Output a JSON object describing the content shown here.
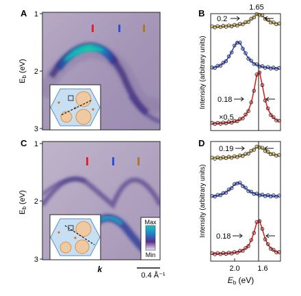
{
  "figure": {
    "panels": {
      "A": {
        "label": "A",
        "ylabel": "E_b (eV)",
        "yticks": [
          "1",
          "2",
          "3"
        ]
      },
      "B": {
        "label": "B",
        "ylabel": "Intensity (arbitrary units)",
        "top_value": "1.65",
        "ann_top": "0.2",
        "ann_bottom": "0.18",
        "scale": "×0.5"
      },
      "C": {
        "label": "C",
        "ylabel": "E_b (eV)",
        "yticks": [
          "1",
          "2",
          "3"
        ],
        "xlabel": "k",
        "scalebar": "0.4 Å⁻¹",
        "colorbar_max": "Max",
        "colorbar_min": "Min"
      },
      "D": {
        "label": "D",
        "ylabel": "Intensity (arbitrary units)",
        "ann_top": "0.19",
        "ann_bottom": "0.18",
        "xticks": [
          "2.0",
          "1.6"
        ],
        "xlabel": "E_b (eV)"
      }
    },
    "cut_markers": {
      "colors": [
        "#e0252a",
        "#2a4fd8",
        "#a87a2a"
      ]
    },
    "colors": {
      "gold": "#b08d2a",
      "blue": "#2f4fd0",
      "red": "#d42525",
      "band": "#3a2a7a"
    }
  }
}
